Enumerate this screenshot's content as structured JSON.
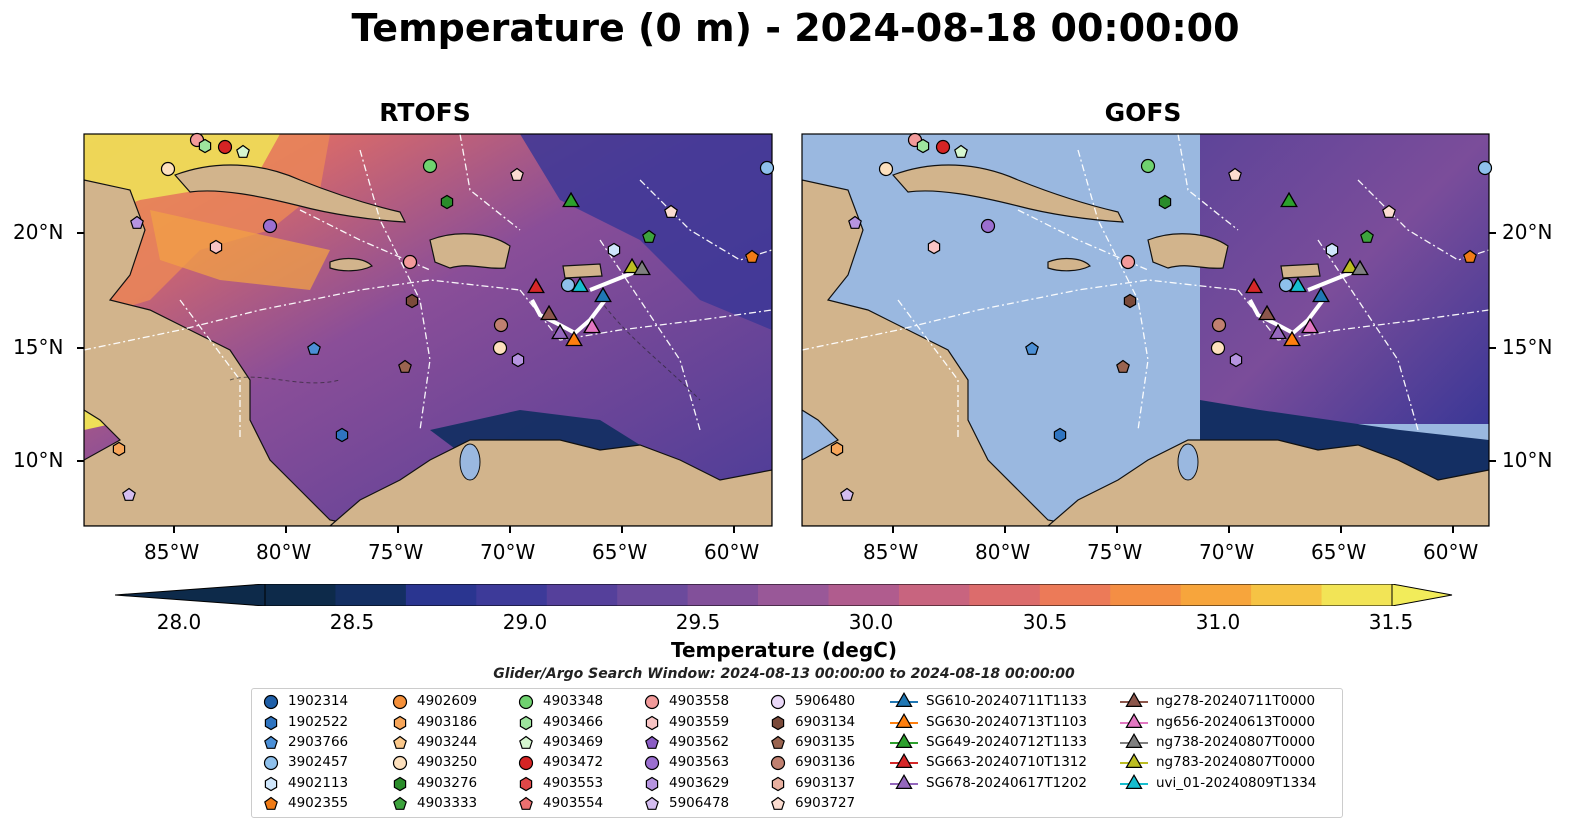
{
  "title": "Temperature (0 m) - 2024-08-18 00:00:00",
  "panels": [
    {
      "title": "RTOFS"
    },
    {
      "title": "GOFS"
    }
  ],
  "axes": {
    "lon_ticks": [
      "85°W",
      "80°W",
      "75°W",
      "70°W",
      "65°W",
      "60°W"
    ],
    "lat_ticks": [
      "20°N",
      "15°N",
      "10°N"
    ]
  },
  "colorbar": {
    "label": "Temperature (degC)",
    "ticks": [
      "28.0",
      "28.5",
      "29.0",
      "29.5",
      "30.0",
      "30.5",
      "31.0",
      "31.5"
    ],
    "range": [
      28.0,
      31.5
    ],
    "colors": [
      "#0d2a4a",
      "#142f63",
      "#2a3590",
      "#3d3a99",
      "#55409b",
      "#6b4a9c",
      "#82509a",
      "#995898",
      "#b05c8e",
      "#c8647f",
      "#dc6c6c",
      "#ec7a58",
      "#f48e44",
      "#f7a53c",
      "#f6c344",
      "#f2e456"
    ]
  },
  "search_window": "Glider/Argo Search Window: 2024-08-13 00:00:00 to 2024-08-18 00:00:00",
  "legend": [
    [
      {
        "label": "1902314",
        "shape": "circle",
        "color": "#1f5fa8"
      },
      {
        "label": "1902522",
        "shape": "hexagon",
        "color": "#2f74c0"
      },
      {
        "label": "2903766",
        "shape": "pentagon",
        "color": "#4b8fd6"
      },
      {
        "label": "3902457",
        "shape": "circle",
        "color": "#8ec0ec"
      },
      {
        "label": "4902113",
        "shape": "hexagon",
        "color": "#cfe6fb"
      },
      {
        "label": "4902355",
        "shape": "pentagon",
        "color": "#f07b16"
      }
    ],
    [
      {
        "label": "4902609",
        "shape": "circle",
        "color": "#f5903a"
      },
      {
        "label": "4903186",
        "shape": "hexagon",
        "color": "#f7a65a"
      },
      {
        "label": "4903244",
        "shape": "pentagon",
        "color": "#fbc88a"
      },
      {
        "label": "4903250",
        "shape": "circle",
        "color": "#fde0bd"
      },
      {
        "label": "4903276",
        "shape": "hexagon",
        "color": "#2a8c2a"
      },
      {
        "label": "4903333",
        "shape": "pentagon",
        "color": "#3da33d"
      }
    ],
    [
      {
        "label": "4903348",
        "shape": "circle",
        "color": "#6fd26f"
      },
      {
        "label": "4903466",
        "shape": "hexagon",
        "color": "#9ee49e"
      },
      {
        "label": "4903469",
        "shape": "pentagon",
        "color": "#d6f7d0"
      },
      {
        "label": "4903472",
        "shape": "circle",
        "color": "#d62424"
      },
      {
        "label": "4903553",
        "shape": "hexagon",
        "color": "#e04848"
      },
      {
        "label": "4903554",
        "shape": "pentagon",
        "color": "#ea7070"
      }
    ],
    [
      {
        "label": "4903558",
        "shape": "circle",
        "color": "#f29a9a"
      },
      {
        "label": "4903559",
        "shape": "hexagon",
        "color": "#f8c4c4"
      },
      {
        "label": "4903562",
        "shape": "pentagon",
        "color": "#8a5cc4"
      },
      {
        "label": "4903563",
        "shape": "circle",
        "color": "#9b6fd0"
      },
      {
        "label": "4903629",
        "shape": "hexagon",
        "color": "#b694e0"
      },
      {
        "label": "5906478",
        "shape": "pentagon",
        "color": "#d4bdf0"
      }
    ],
    [
      {
        "label": "5906480",
        "shape": "circle",
        "color": "#ead8f8"
      },
      {
        "label": "6903134",
        "shape": "hexagon",
        "color": "#7a4a3a"
      },
      {
        "label": "6903135",
        "shape": "pentagon",
        "color": "#9a6450"
      },
      {
        "label": "6903136",
        "shape": "circle",
        "color": "#c08070"
      },
      {
        "label": "6903137",
        "shape": "hexagon",
        "color": "#e8b0a0"
      },
      {
        "label": "6903727",
        "shape": "pentagon",
        "color": "#fbdcd0"
      }
    ],
    [
      {
        "label": "SG610-20240711T1133",
        "shape": "triangle-line",
        "color": "#1f77b4"
      },
      {
        "label": "SG630-20240713T1103",
        "shape": "triangle-line",
        "color": "#ff7f0e"
      },
      {
        "label": "SG649-20240712T1133",
        "shape": "triangle-line",
        "color": "#2ca02c"
      },
      {
        "label": "SG663-20240710T1312",
        "shape": "triangle-line",
        "color": "#d62728"
      },
      {
        "label": "SG678-20240617T1202",
        "shape": "triangle-line",
        "color": "#9467bd"
      }
    ],
    [
      {
        "label": "ng278-20240711T0000",
        "shape": "triangle-line",
        "color": "#8c564b"
      },
      {
        "label": "ng656-20240613T0000",
        "shape": "triangle-line",
        "color": "#e377c2"
      },
      {
        "label": "ng738-20240807T0000",
        "shape": "triangle-line",
        "color": "#7f7f7f"
      },
      {
        "label": "ng783-20240807T0000",
        "shape": "triangle-line",
        "color": "#bcbd22"
      },
      {
        "label": "uvi_01-20240809T1334",
        "shape": "triangle-line",
        "color": "#17becf"
      }
    ]
  ]
}
